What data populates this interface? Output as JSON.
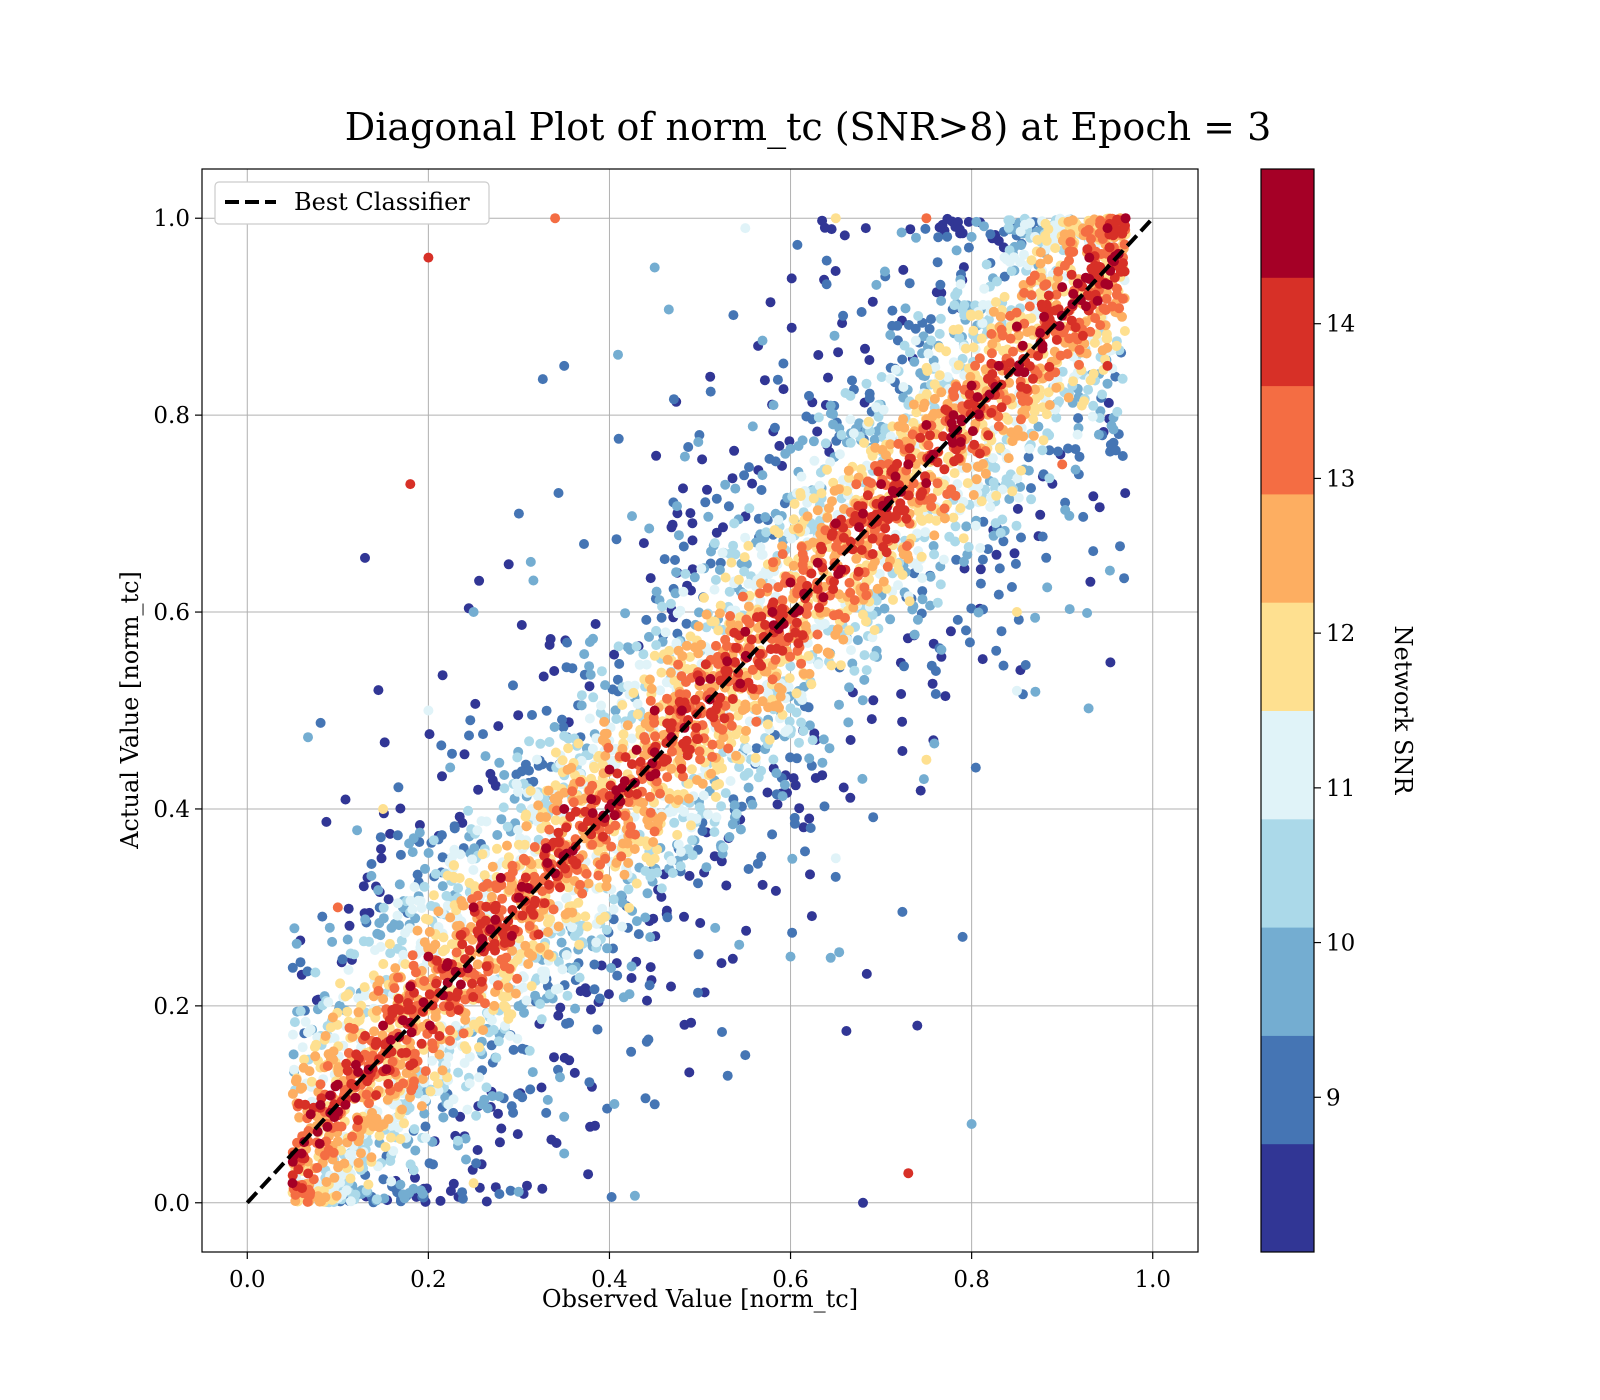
{
  "chart_data": {
    "type": "scatter",
    "title": "Diagonal Plot of norm_tc (SNR>8) at Epoch = 3",
    "xlabel": "Observed Value [norm_tc]",
    "ylabel": "Actual Value [norm_tc]",
    "xlim": [
      -0.05,
      1.05
    ],
    "ylim": [
      -0.05,
      1.05
    ],
    "xticks": [
      "0.0",
      "0.2",
      "0.4",
      "0.6",
      "0.8",
      "1.0"
    ],
    "yticks": [
      "0.0",
      "0.2",
      "0.4",
      "0.6",
      "0.8",
      "1.0"
    ],
    "grid": true,
    "legend": {
      "placement": "upper-left",
      "entries": [
        "Best Classifier"
      ]
    },
    "reference_line": {
      "name": "Best Classifier",
      "x": [
        0.0,
        1.0
      ],
      "y": [
        0.0,
        1.0
      ],
      "style": "dashed",
      "color": "#000000"
    },
    "colorbar": {
      "label": "Network SNR",
      "range": [
        8,
        15
      ],
      "ticks": [
        "9",
        "10",
        "11",
        "12",
        "13",
        "14"
      ],
      "tick_values": [
        9,
        10,
        11,
        12,
        13,
        14
      ],
      "bins": [
        {
          "from": 8.0,
          "to": 8.7,
          "color": "#313695"
        },
        {
          "from": 8.7,
          "to": 9.4,
          "color": "#4575b4"
        },
        {
          "from": 9.4,
          "to": 10.1,
          "color": "#74add1"
        },
        {
          "from": 10.1,
          "to": 10.8,
          "color": "#abd9e9"
        },
        {
          "from": 10.8,
          "to": 11.5,
          "color": "#e0f3f8"
        },
        {
          "from": 11.5,
          "to": 12.2,
          "color": "#fee090"
        },
        {
          "from": 12.2,
          "to": 12.9,
          "color": "#fdae61"
        },
        {
          "from": 12.9,
          "to": 13.6,
          "color": "#f46d43"
        },
        {
          "from": 13.6,
          "to": 14.3,
          "color": "#d73027"
        },
        {
          "from": 14.3,
          "to": 15.0,
          "color": "#a50026"
        }
      ]
    },
    "series": [
      {
        "color_encoding": "Network SNR",
        "marker": "circle",
        "points_estimated": [
          [
            0.05,
            0.02,
            15
          ],
          [
            0.06,
            0.05,
            15
          ],
          [
            0.07,
            0.09,
            15
          ],
          [
            0.08,
            0.06,
            15
          ],
          [
            0.1,
            0.12,
            15
          ],
          [
            0.12,
            0.14,
            15
          ],
          [
            0.15,
            0.18,
            15
          ],
          [
            0.18,
            0.22,
            15
          ],
          [
            0.2,
            0.25,
            15
          ],
          [
            0.22,
            0.24,
            15
          ],
          [
            0.25,
            0.3,
            15
          ],
          [
            0.28,
            0.33,
            15
          ],
          [
            0.3,
            0.31,
            15
          ],
          [
            0.33,
            0.36,
            15
          ],
          [
            0.35,
            0.4,
            15
          ],
          [
            0.38,
            0.41,
            15
          ],
          [
            0.4,
            0.44,
            15
          ],
          [
            0.43,
            0.46,
            15
          ],
          [
            0.45,
            0.5,
            15
          ],
          [
            0.48,
            0.5,
            15
          ],
          [
            0.5,
            0.53,
            15
          ],
          [
            0.53,
            0.55,
            15
          ],
          [
            0.55,
            0.58,
            15
          ],
          [
            0.58,
            0.6,
            15
          ],
          [
            0.6,
            0.63,
            15
          ],
          [
            0.63,
            0.65,
            15
          ],
          [
            0.65,
            0.69,
            15
          ],
          [
            0.68,
            0.7,
            15
          ],
          [
            0.7,
            0.73,
            15
          ],
          [
            0.73,
            0.75,
            15
          ],
          [
            0.75,
            0.79,
            15
          ],
          [
            0.78,
            0.8,
            15
          ],
          [
            0.8,
            0.83,
            15
          ],
          [
            0.83,
            0.85,
            15
          ],
          [
            0.85,
            0.89,
            15
          ],
          [
            0.88,
            0.9,
            15
          ],
          [
            0.9,
            0.93,
            15
          ],
          [
            0.93,
            0.96,
            15
          ],
          [
            0.95,
            0.99,
            15
          ],
          [
            0.97,
            1.0,
            15
          ],
          [
            0.1,
            0.3,
            13
          ],
          [
            0.15,
            0.4,
            12
          ],
          [
            0.2,
            0.5,
            11
          ],
          [
            0.25,
            0.6,
            10
          ],
          [
            0.3,
            0.7,
            9
          ],
          [
            0.35,
            0.85,
            9
          ],
          [
            0.45,
            0.95,
            10
          ],
          [
            0.55,
            0.99,
            11
          ],
          [
            0.65,
            1.0,
            12
          ],
          [
            0.75,
            1.0,
            13
          ],
          [
            0.25,
            0.02,
            12
          ],
          [
            0.35,
            0.05,
            10
          ],
          [
            0.45,
            0.1,
            9
          ],
          [
            0.55,
            0.15,
            9
          ],
          [
            0.6,
            0.25,
            10
          ],
          [
            0.65,
            0.35,
            11
          ],
          [
            0.75,
            0.45,
            12
          ],
          [
            0.85,
            0.6,
            12
          ],
          [
            0.9,
            0.75,
            13
          ],
          [
            0.95,
            0.85,
            14
          ],
          [
            0.13,
            0.655,
            8
          ],
          [
            0.34,
            1.0,
            13
          ],
          [
            0.8,
            0.08,
            10
          ],
          [
            0.73,
            0.03,
            14
          ],
          [
            0.68,
            0.0,
            8
          ],
          [
            0.85,
            0.52,
            11
          ],
          [
            0.79,
            0.27,
            9
          ],
          [
            0.74,
            0.18,
            8
          ],
          [
            0.18,
            0.73,
            14
          ],
          [
            0.2,
            0.96,
            14
          ]
        ]
      }
    ]
  }
}
